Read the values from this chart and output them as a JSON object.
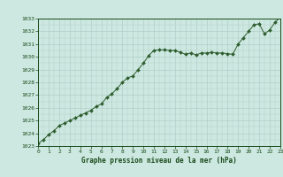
{
  "x": [
    0,
    0.5,
    1,
    1.5,
    2,
    2.5,
    3,
    3.5,
    4,
    4.5,
    5,
    5.5,
    6,
    6.5,
    7,
    7.5,
    8,
    8.5,
    9,
    9.5,
    10,
    10.5,
    11,
    11.5,
    12,
    12.5,
    13,
    13.5,
    14,
    14.5,
    15,
    15.5,
    16,
    16.5,
    17,
    17.5,
    18,
    18.5,
    19,
    19.5,
    20,
    20.5,
    21,
    21.5,
    22,
    22.5,
    23
  ],
  "y": [
    1023.2,
    1023.5,
    1023.9,
    1024.2,
    1024.6,
    1024.8,
    1025.0,
    1025.2,
    1025.4,
    1025.6,
    1025.8,
    1026.1,
    1026.3,
    1026.8,
    1027.1,
    1027.5,
    1028.0,
    1028.35,
    1028.5,
    1029.0,
    1029.5,
    1030.1,
    1030.5,
    1030.55,
    1030.55,
    1030.5,
    1030.5,
    1030.35,
    1030.2,
    1030.3,
    1030.15,
    1030.3,
    1030.3,
    1030.35,
    1030.3,
    1030.3,
    1030.25,
    1030.2,
    1031.0,
    1031.5,
    1032.0,
    1032.5,
    1032.6,
    1031.8,
    1032.1,
    1032.7,
    1033.1
  ],
  "line_color": "#2d5c2d",
  "marker_color": "#2d5c2d",
  "bg_color": "#cce8e0",
  "grid_color": "#b0cfc8",
  "text_color": "#1a4a1a",
  "xlabel": "Graphe pression niveau de la mer (hPa)",
  "ylim": [
    1023,
    1033
  ],
  "xlim": [
    0,
    23
  ],
  "yticks": [
    1023,
    1024,
    1025,
    1026,
    1027,
    1028,
    1029,
    1030,
    1031,
    1032,
    1033
  ],
  "xticks": [
    0,
    1,
    2,
    3,
    4,
    5,
    6,
    7,
    8,
    9,
    10,
    11,
    12,
    13,
    14,
    15,
    16,
    17,
    18,
    19,
    20,
    21,
    22,
    23
  ],
  "xtick_labels": [
    "0",
    "1",
    "2",
    "3",
    "4",
    "5",
    "6",
    "7",
    "8",
    "9",
    "10",
    "11",
    "12",
    "13",
    "14",
    "15",
    "16",
    "17",
    "18",
    "19",
    "20",
    "21",
    "22",
    "23"
  ],
  "ytick_labels": [
    "1023",
    "1024",
    "1025",
    "1026",
    "1027",
    "1028",
    "1029",
    "1030",
    "1031",
    "1032",
    "1033"
  ]
}
